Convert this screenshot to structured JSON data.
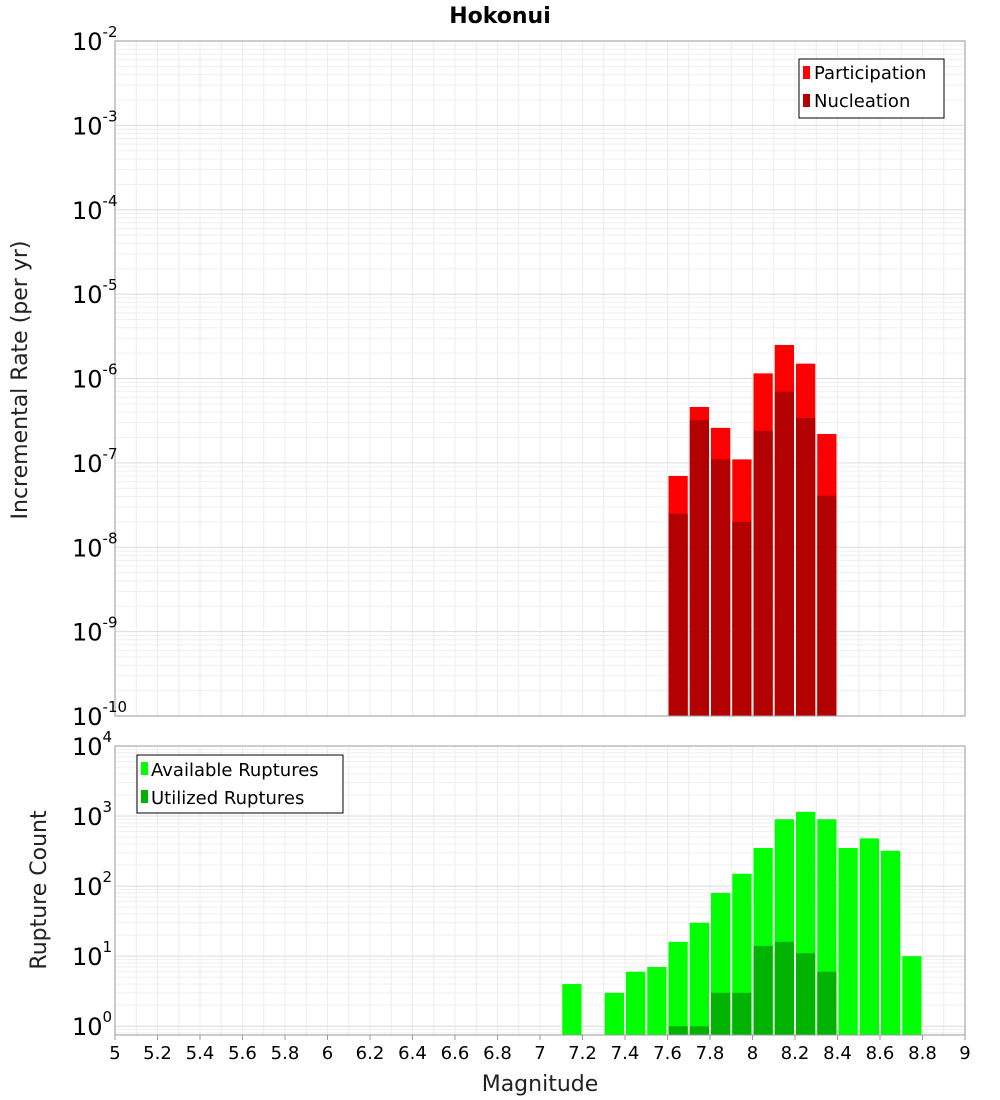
{
  "title": "Hokonui",
  "x_axis": {
    "label": "Magnitude",
    "range": [
      5,
      9
    ],
    "ticks": [
      "5",
      "5.2",
      "5.4",
      "5.6",
      "5.8",
      "6",
      "6.2",
      "6.4",
      "6.6",
      "6.8",
      "7",
      "7.2",
      "7.4",
      "7.6",
      "7.8",
      "8",
      "8.2",
      "8.4",
      "8.6",
      "8.8",
      "9"
    ]
  },
  "chart_data": [
    {
      "type": "bar",
      "name": "rate-plot",
      "ylabel": "Incremental Rate (per yr)",
      "yscale": "log",
      "ylim": [
        1e-10,
        0.01
      ],
      "y_ticks": [
        {
          "base": "10",
          "exp": "-2",
          "value": 0.01
        },
        {
          "base": "10",
          "exp": "-3",
          "value": 0.001
        },
        {
          "base": "10",
          "exp": "-4",
          "value": 0.0001
        },
        {
          "base": "10",
          "exp": "-5",
          "value": 1e-05
        },
        {
          "base": "10",
          "exp": "-6",
          "value": 1e-06
        },
        {
          "base": "10",
          "exp": "-7",
          "value": 1e-07
        },
        {
          "base": "10",
          "exp": "-8",
          "value": 1e-08
        },
        {
          "base": "10",
          "exp": "-9",
          "value": 1e-09
        },
        {
          "base": "10",
          "exp": "-10",
          "value": 1e-10
        }
      ],
      "legend_position": "top-right",
      "series": [
        {
          "name": "Participation",
          "color": "#ff0000",
          "x": [
            7.65,
            7.75,
            7.85,
            7.95,
            8.05,
            8.15,
            8.25,
            8.35
          ],
          "values": [
            7e-08,
            4.6e-07,
            2.6e-07,
            1.1e-07,
            1.15e-06,
            2.5e-06,
            1.5e-06,
            2.2e-07
          ]
        },
        {
          "name": "Nucleation",
          "color": "#b30000",
          "x": [
            7.65,
            7.75,
            7.85,
            7.95,
            8.05,
            8.15,
            8.25,
            8.35
          ],
          "values": [
            2.5e-08,
            3.2e-07,
            1.1e-07,
            2e-08,
            2.4e-07,
            7e-07,
            3.4e-07,
            4.1e-08
          ]
        }
      ]
    },
    {
      "type": "bar",
      "name": "count-plot",
      "ylabel": "Rupture Count",
      "yscale": "log",
      "ylim": [
        0.75,
        10000
      ],
      "y_ticks": [
        {
          "base": "10",
          "exp": "4",
          "value": 10000
        },
        {
          "base": "10",
          "exp": "3",
          "value": 1000
        },
        {
          "base": "10",
          "exp": "2",
          "value": 100
        },
        {
          "base": "10",
          "exp": "1",
          "value": 10
        },
        {
          "base": "10",
          "exp": "0",
          "value": 1
        }
      ],
      "legend_position": "top-left",
      "series": [
        {
          "name": "Available Ruptures",
          "color": "#00ff00",
          "x": [
            7.15,
            7.35,
            7.45,
            7.55,
            7.65,
            7.75,
            7.85,
            7.95,
            8.05,
            8.15,
            8.25,
            8.35,
            8.45,
            8.55,
            8.65,
            8.75
          ],
          "values": [
            4,
            3,
            6,
            7,
            16,
            30,
            80,
            150,
            350,
            900,
            1150,
            900,
            350,
            480,
            320,
            10
          ]
        },
        {
          "name": "Utilized Ruptures",
          "color": "#00b300",
          "x": [
            7.65,
            7.75,
            7.85,
            7.95,
            8.05,
            8.15,
            8.25,
            8.35
          ],
          "values": [
            1,
            1,
            3,
            3,
            14,
            16,
            11,
            6
          ]
        }
      ]
    }
  ]
}
